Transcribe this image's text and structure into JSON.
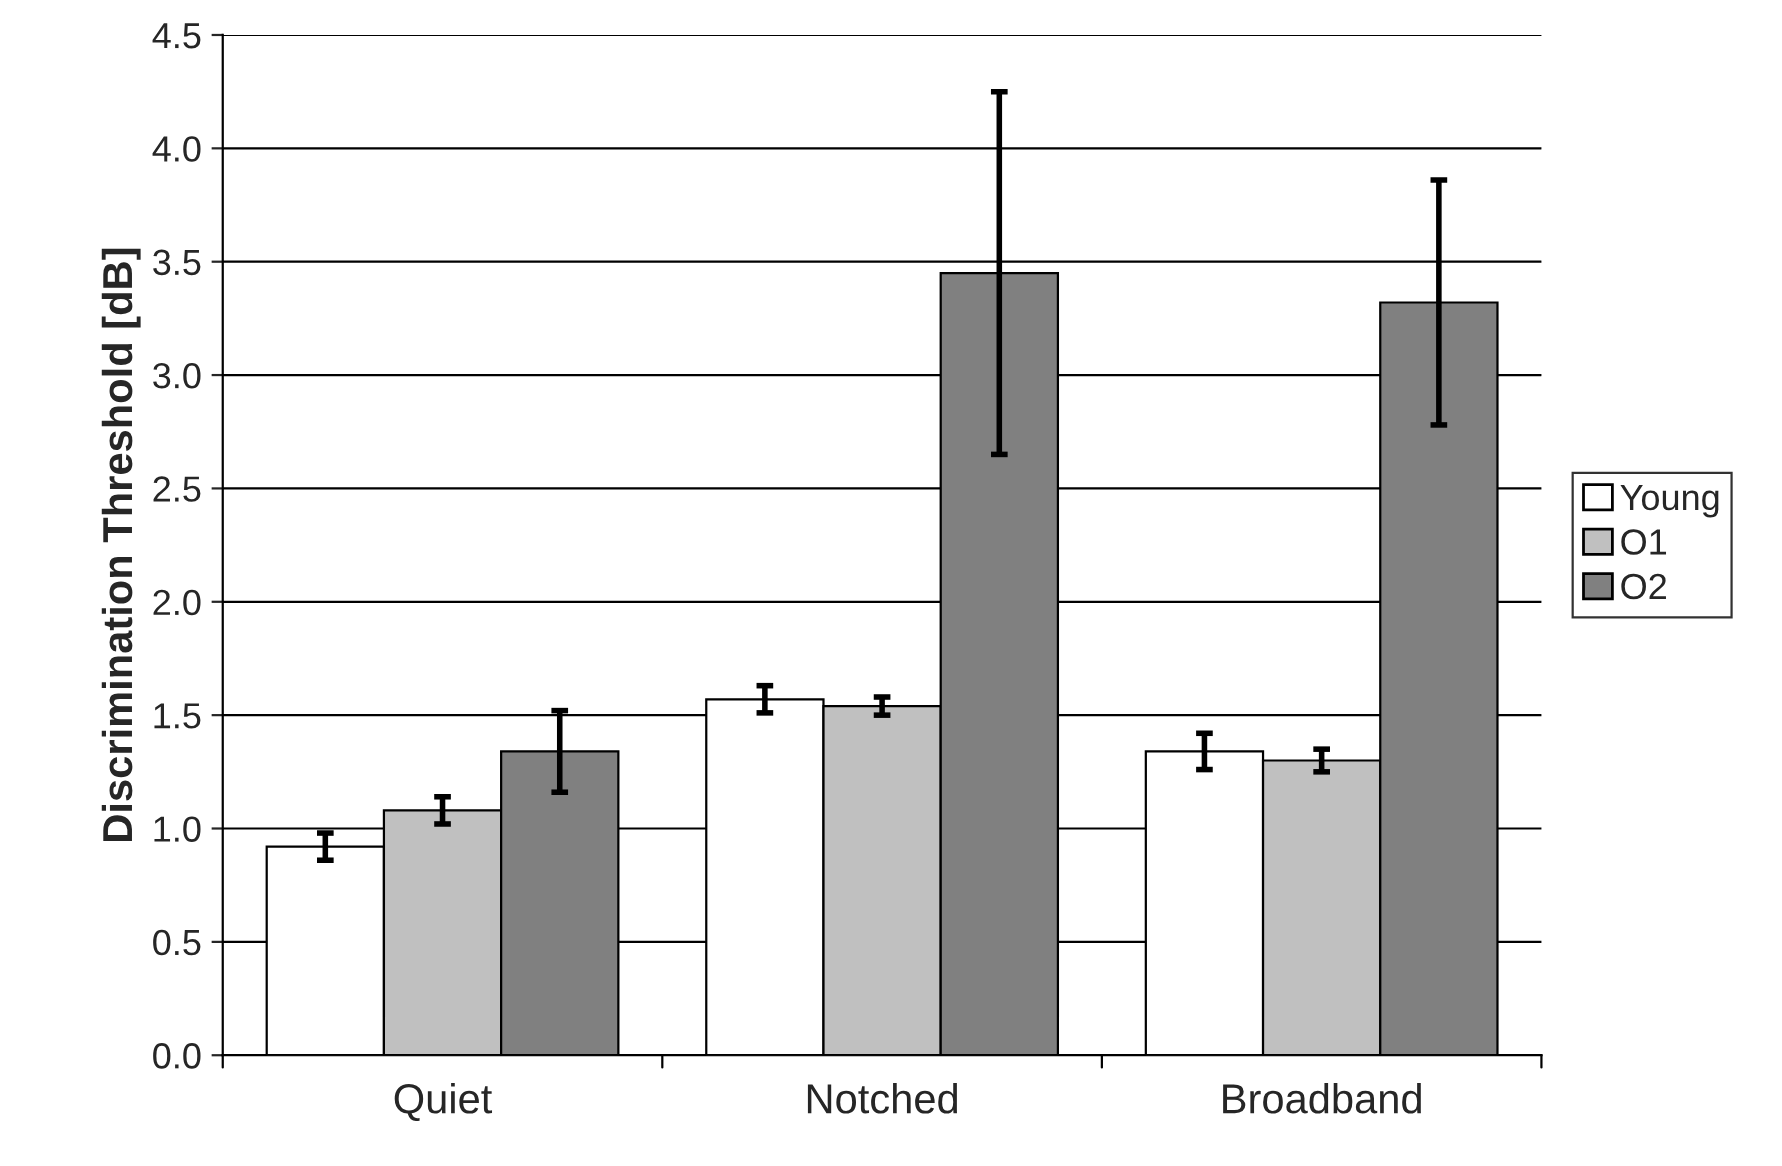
{
  "chart_data": {
    "type": "bar",
    "ylabel": "Discrimination Threshold [dB]",
    "categories": [
      "Quiet",
      "Notched",
      "Broadband"
    ],
    "series": [
      {
        "name": "Young",
        "color": "#ffffff",
        "values": [
          0.92,
          1.57,
          1.34
        ],
        "errors": [
          0.06,
          0.06,
          0.08
        ]
      },
      {
        "name": "O1",
        "color": "#c0c0c0",
        "values": [
          1.08,
          1.54,
          1.3
        ],
        "errors": [
          0.06,
          0.04,
          0.05
        ]
      },
      {
        "name": "O2",
        "color": "#808080",
        "values": [
          1.34,
          3.45,
          3.32
        ],
        "errors": [
          0.18,
          0.8,
          0.54
        ]
      }
    ],
    "ylim": [
      0,
      4.5
    ],
    "yticks": [
      {
        "value": 0,
        "label": "0.0"
      },
      {
        "value": 0.5,
        "label": "0.5"
      },
      {
        "value": 1,
        "label": "1.0"
      },
      {
        "value": 1.5,
        "label": "1.5"
      },
      {
        "value": 2,
        "label": "2.0"
      },
      {
        "value": 2.5,
        "label": "2.5"
      },
      {
        "value": 3,
        "label": "3.0"
      },
      {
        "value": 3.5,
        "label": "3.5"
      },
      {
        "value": 4,
        "label": "4.0"
      },
      {
        "value": 4.5,
        "label": "4.5"
      }
    ],
    "grid": "y",
    "legend": "right"
  }
}
